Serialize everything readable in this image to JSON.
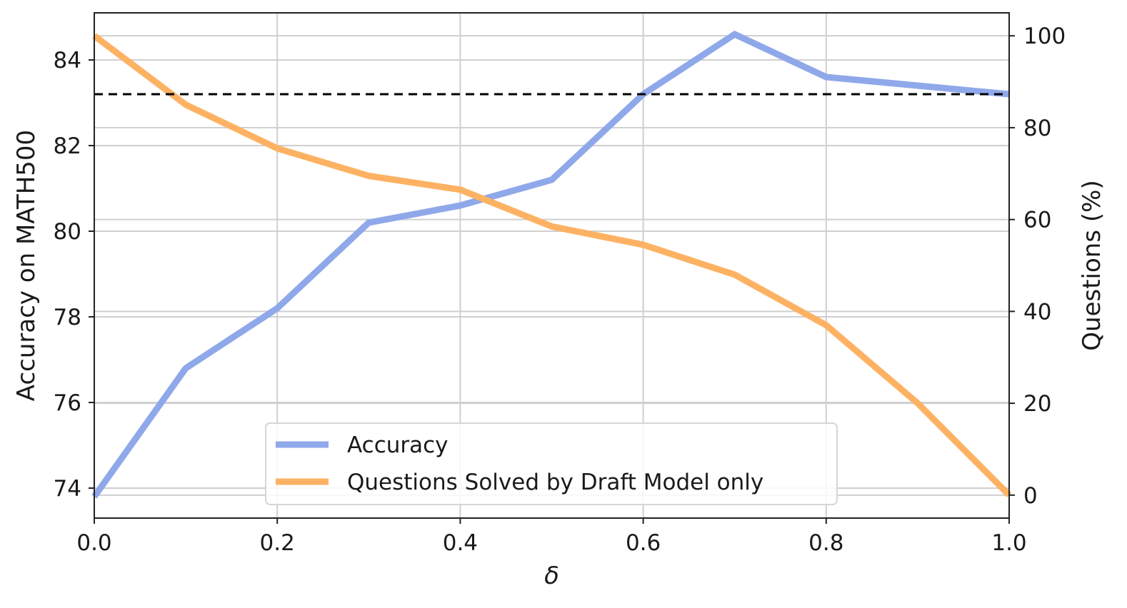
{
  "chart_data": {
    "type": "line",
    "x": [
      0.0,
      0.1,
      0.2,
      0.3,
      0.4,
      0.5,
      0.6,
      0.7,
      0.8,
      0.9,
      1.0
    ],
    "xlabel": "δ",
    "ylabel_left": "Accuracy on MATH500",
    "ylabel_right": "Questions (%)",
    "xlim": [
      0.0,
      1.0
    ],
    "ylim_left": [
      73.3,
      85.1
    ],
    "ylim_right": [
      -5,
      105
    ],
    "x_ticks": [
      "0.0",
      "0.2",
      "0.4",
      "0.6",
      "0.8",
      "1.0"
    ],
    "y_left_ticks": [
      "74",
      "76",
      "78",
      "80",
      "82",
      "84"
    ],
    "y_right_ticks": [
      "0",
      "20",
      "40",
      "60",
      "80",
      "100"
    ],
    "grid": true,
    "legend_position": "lower-center",
    "reference_line": {
      "axis": "left",
      "value": 83.2,
      "style": "dashed",
      "color": "#000000"
    },
    "series": [
      {
        "name": "Accuracy",
        "axis": "left",
        "color": "#8fa8ea",
        "values": [
          73.8,
          76.8,
          78.2,
          80.2,
          80.6,
          81.2,
          83.2,
          84.6,
          83.6,
          83.4,
          83.2
        ]
      },
      {
        "name": "Questions Solved by Draft Model only",
        "axis": "right",
        "color": "#fdb263",
        "values": [
          100,
          85,
          75.5,
          69.5,
          66.5,
          58.5,
          54.5,
          48,
          37,
          20,
          0
        ]
      }
    ]
  }
}
